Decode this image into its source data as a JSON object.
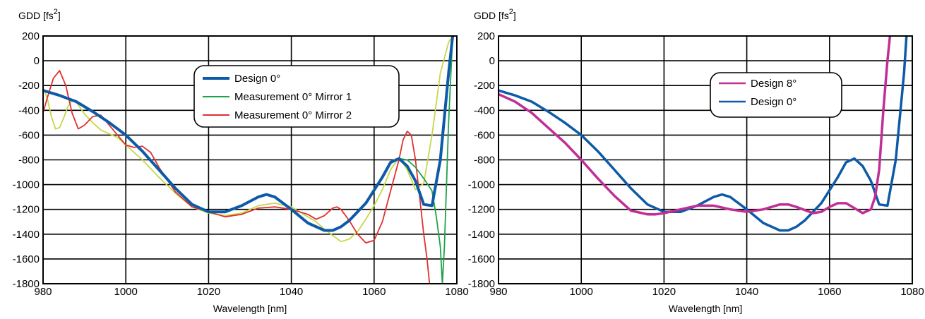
{
  "charts": [
    {
      "type": "line",
      "title": "",
      "ylabel": "GDD [fs",
      "ylabel_sup": "2",
      "ylabel_close": "]",
      "xlabel": "Wavelength [nm]",
      "xlim": [
        980,
        1080
      ],
      "ylim": [
        -1800,
        200
      ],
      "xticks": [
        980,
        1000,
        1020,
        1040,
        1060,
        1080
      ],
      "yticks": [
        200,
        0,
        -200,
        -400,
        -600,
        -800,
        -1000,
        -1200,
        -1400,
        -1600,
        -1800
      ],
      "grid": true,
      "legend_position": "top-center",
      "series": [
        {
          "name": "Design 0°",
          "color": "#0d5aa7",
          "width": 4,
          "legend_width": 4,
          "x": [
            980,
            984,
            988,
            992,
            996,
            1000,
            1004,
            1008,
            1012,
            1016,
            1020,
            1024,
            1028,
            1032,
            1034,
            1036,
            1040,
            1044,
            1048,
            1050,
            1052,
            1054,
            1058,
            1062,
            1064,
            1066,
            1068,
            1070,
            1072,
            1074,
            1076,
            1078,
            1079
          ],
          "y": [
            -240,
            -280,
            -330,
            -410,
            -500,
            -600,
            -730,
            -880,
            -1030,
            -1160,
            -1220,
            -1220,
            -1170,
            -1100,
            -1080,
            -1100,
            -1200,
            -1310,
            -1370,
            -1370,
            -1340,
            -1290,
            -1150,
            -940,
            -820,
            -790,
            -850,
            -970,
            -1160,
            -1170,
            -800,
            -100,
            200
          ]
        },
        {
          "name": "Measurement 0° Mirror 1",
          "color": "#1fa24b",
          "width": 1.8,
          "legend_width": 2,
          "x": [
            1064,
            1066,
            1068,
            1070,
            1072,
            1073,
            1074,
            1075,
            1076,
            1076.5,
            1077,
            1078,
            1079
          ],
          "y": [
            -830,
            -790,
            -800,
            -860,
            -950,
            -1000,
            -1050,
            -1250,
            -1500,
            -1800,
            -1500,
            -500,
            200
          ]
        },
        {
          "name": "Measurement 0° Mirror 2",
          "color": "#e03030",
          "width": 1.8,
          "legend_width": 2,
          "x": [
            980,
            981,
            982.5,
            984,
            985.5,
            987,
            988.5,
            990,
            992,
            994,
            996,
            998,
            1000,
            1002,
            1004,
            1006,
            1008,
            1012,
            1016,
            1020,
            1024,
            1028,
            1032,
            1036,
            1040,
            1044,
            1046,
            1048,
            1050,
            1051,
            1052,
            1054,
            1056,
            1058,
            1060,
            1062,
            1064,
            1066,
            1067,
            1068,
            1069,
            1070,
            1071,
            1072,
            1072.8,
            1073.4
          ],
          "y": [
            -420,
            -300,
            -140,
            -80,
            -200,
            -420,
            -550,
            -520,
            -450,
            -440,
            -520,
            -600,
            -680,
            -700,
            -690,
            -740,
            -860,
            -1060,
            -1180,
            -1220,
            -1260,
            -1240,
            -1190,
            -1180,
            -1200,
            -1240,
            -1280,
            -1250,
            -1190,
            -1180,
            -1200,
            -1290,
            -1400,
            -1470,
            -1450,
            -1300,
            -1050,
            -800,
            -640,
            -570,
            -600,
            -800,
            -1100,
            -1400,
            -1600,
            -1800
          ]
        },
        {
          "name": "",
          "color": "#c6d74a",
          "width": 1.8,
          "legend_width": 0,
          "x": [
            980,
            981,
            982,
            983,
            984,
            985,
            986,
            987,
            988,
            989,
            990,
            992,
            994,
            996,
            998,
            1000,
            1004,
            1008,
            1012,
            1016,
            1020,
            1024,
            1028,
            1032,
            1036,
            1040,
            1042,
            1044,
            1046,
            1048,
            1050,
            1052,
            1054,
            1056,
            1058,
            1060,
            1062,
            1064,
            1066,
            1068,
            1070,
            1072,
            1074,
            1076,
            1078,
            1079
          ],
          "y": [
            -220,
            -300,
            -450,
            -550,
            -540,
            -460,
            -370,
            -320,
            -330,
            -380,
            -430,
            -500,
            -560,
            -590,
            -620,
            -680,
            -800,
            -940,
            -1070,
            -1180,
            -1230,
            -1250,
            -1230,
            -1170,
            -1150,
            -1180,
            -1220,
            -1260,
            -1300,
            -1360,
            -1410,
            -1460,
            -1440,
            -1380,
            -1280,
            -1170,
            -1040,
            -880,
            -780,
            -880,
            -1040,
            -990,
            -600,
            -100,
            150,
            200
          ]
        }
      ]
    },
    {
      "type": "line",
      "title": "",
      "ylabel": "GDD [fs",
      "ylabel_sup": "2",
      "ylabel_close": "]",
      "xlabel": "Wavelength [nm]",
      "xlim": [
        980,
        1080
      ],
      "ylim": [
        -1800,
        200
      ],
      "xticks": [
        980,
        1000,
        1020,
        1040,
        1060,
        1080
      ],
      "yticks": [
        200,
        0,
        -200,
        -400,
        -600,
        -800,
        -1000,
        -1200,
        -1400,
        -1600,
        -1800
      ],
      "grid": true,
      "legend_position": "top-right",
      "series": [
        {
          "name": "Design 8°",
          "color": "#c02f96",
          "width": 3.5,
          "legend_width": 2.5,
          "x": [
            980,
            984,
            988,
            992,
            996,
            1000,
            1004,
            1008,
            1012,
            1016,
            1018,
            1020,
            1024,
            1028,
            1032,
            1036,
            1040,
            1044,
            1048,
            1050,
            1052,
            1056,
            1058,
            1060,
            1062,
            1064,
            1066,
            1068,
            1070,
            1071,
            1072,
            1073,
            1074,
            1074.6
          ],
          "y": [
            -270,
            -330,
            -420,
            -540,
            -660,
            -800,
            -950,
            -1090,
            -1210,
            -1240,
            -1240,
            -1230,
            -1200,
            -1170,
            -1170,
            -1200,
            -1220,
            -1200,
            -1160,
            -1160,
            -1180,
            -1230,
            -1220,
            -1180,
            -1150,
            -1150,
            -1190,
            -1230,
            -1200,
            -1100,
            -880,
            -400,
            0,
            200
          ]
        },
        {
          "name": "Design 0°",
          "color": "#0d5aa7",
          "width": 3.5,
          "legend_width": 2.5,
          "x": [
            980,
            984,
            988,
            992,
            996,
            1000,
            1004,
            1008,
            1012,
            1016,
            1020,
            1024,
            1028,
            1032,
            1034,
            1036,
            1040,
            1044,
            1048,
            1050,
            1052,
            1054,
            1058,
            1062,
            1064,
            1066,
            1068,
            1070,
            1072,
            1074,
            1076,
            1078,
            1078.6
          ],
          "y": [
            -240,
            -280,
            -330,
            -410,
            -500,
            -600,
            -730,
            -880,
            -1030,
            -1160,
            -1220,
            -1220,
            -1170,
            -1100,
            -1080,
            -1100,
            -1200,
            -1310,
            -1370,
            -1370,
            -1340,
            -1290,
            -1150,
            -940,
            -820,
            -790,
            -850,
            -970,
            -1160,
            -1170,
            -800,
            -100,
            200
          ]
        }
      ]
    }
  ]
}
